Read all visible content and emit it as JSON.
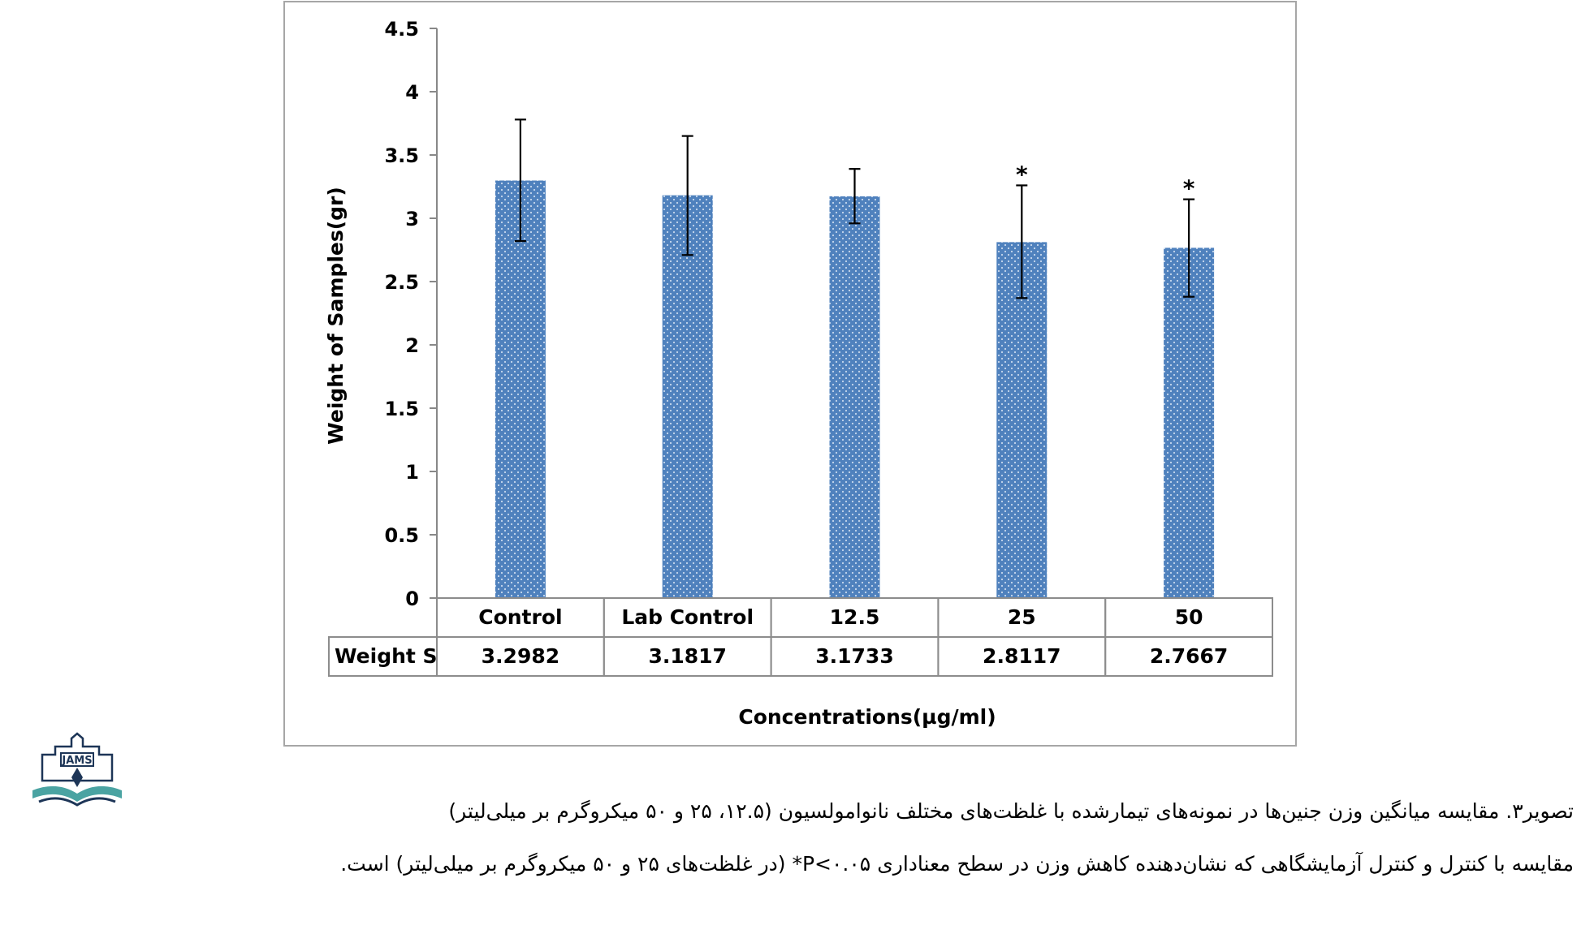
{
  "chart_data": {
    "type": "bar",
    "categories": [
      "Control",
      "Lab Control",
      "12.5",
      "25",
      "50"
    ],
    "values": [
      3.2982,
      3.1817,
      3.1733,
      2.8117,
      2.7667
    ],
    "value_labels": [
      "3.2982",
      "3.1817",
      "3.1733",
      "2.8117",
      "2.7667"
    ],
    "error_upper": [
      3.78,
      3.65,
      3.39,
      3.26,
      3.15
    ],
    "error_lower": [
      2.82,
      2.71,
      2.96,
      2.37,
      2.38
    ],
    "significance": [
      "",
      "",
      "",
      "*",
      "*"
    ],
    "series_name": "Weight S",
    "xlabel": "Concentrations(µg/ml)",
    "ylabel": "Weight of Samples(gr)",
    "ylim": [
      0,
      4.5
    ],
    "yticks": [
      "0",
      "0.5",
      "1",
      "1.5",
      "2",
      "2.5",
      "3",
      "3.5",
      "4",
      "4.5"
    ],
    "ytick_values": [
      0,
      0.5,
      1,
      1.5,
      2,
      2.5,
      3,
      3.5,
      4,
      4.5
    ],
    "grid": false,
    "bar_color": "#4f81bd",
    "bar_dot_color": "#c9d9ee",
    "data_table": true
  },
  "caption": {
    "line1": "تصویر۳. مقایسه میانگین وزن جنین‌ها در نمونه‌های تیمارشده با غلظت‌های مختلف نانوامولسیون (۱۲.۵، ۲۵ و ۵۰ میکروگرم بر میلی‌لیتر)",
    "line2": "مقایسه با کنترل و کنترل آزمایشگاهی که نشان‌دهنده کاهش وزن در سطح معناداری P<۰.۰۵* (در غلظت‌های ۲۵ و ۵۰ میکروگرم بر میلی‌لیتر) است."
  },
  "logo": {
    "text": "JAMS",
    "icon": "jams-journal-logo-icon"
  }
}
